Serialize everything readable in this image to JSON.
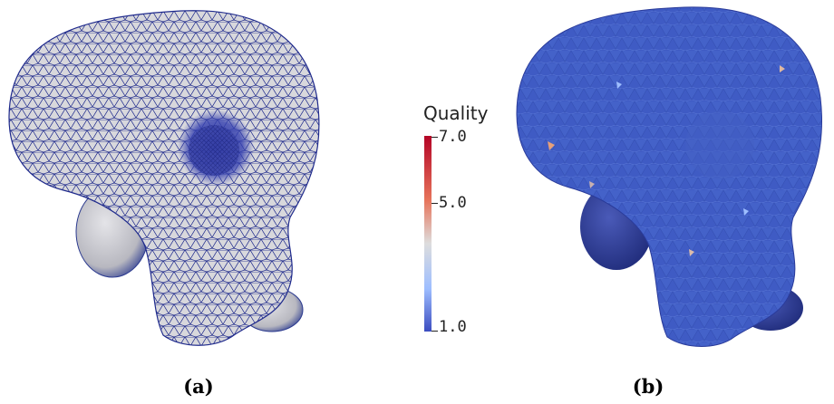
{
  "panels": [
    {
      "caption": "(a)",
      "description": "triangulated-surface-mesh"
    },
    {
      "caption": "(b)",
      "description": "quality-colored-mesh"
    }
  ],
  "colorbar": {
    "title": "Quality",
    "ticks": [
      {
        "label": "7.0",
        "value": 7.0
      },
      {
        "label": "5.0",
        "value": 5.0
      },
      {
        "label": "1.0",
        "value": 1.0
      }
    ],
    "colors": {
      "high": "#b40426",
      "mid_high": "#e7745b",
      "mid": "#dddddd",
      "mid_low": "#9ebeff",
      "low": "#3b4cc0"
    }
  },
  "colors": {
    "mesh_fill": "#d8d8dc",
    "mesh_wire": "#1f2a8c",
    "quality_fill": "#3f5bc4",
    "bulge_fill": "#c9c9ce",
    "bulge_dark": "#2b3a8f"
  }
}
